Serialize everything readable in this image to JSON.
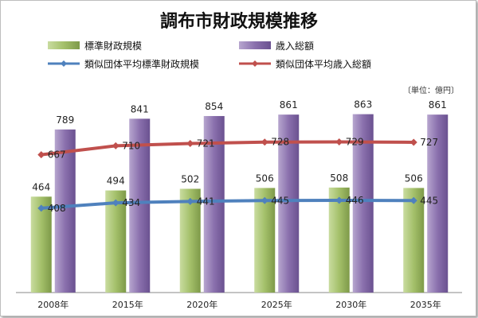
{
  "chart_data": {
    "type": "bar",
    "title": "調布市財政規模推移",
    "unit_label": "〔単位：億円〕",
    "categories": [
      "2008年",
      "2015年",
      "2020年",
      "2025年",
      "2030年",
      "2035年"
    ],
    "series": [
      {
        "name": "標準財政規模",
        "kind": "bar",
        "values": [
          464,
          494,
          502,
          506,
          508,
          506
        ],
        "color": "#9dbb61"
      },
      {
        "name": "歳入総額",
        "kind": "bar",
        "values": [
          789,
          841,
          854,
          861,
          863,
          861
        ],
        "color": "#8064a2"
      },
      {
        "name": "類似団体平均標準財政規模",
        "kind": "line",
        "values": [
          408,
          434,
          441,
          445,
          446,
          445
        ],
        "color": "#4f81bd"
      },
      {
        "name": "類似団体平均歳入総額",
        "kind": "line",
        "values": [
          667,
          710,
          721,
          728,
          729,
          727
        ],
        "color": "#c0504d"
      }
    ],
    "ylim": [
      0,
      1000
    ],
    "grid": false,
    "legend_position": "top"
  }
}
